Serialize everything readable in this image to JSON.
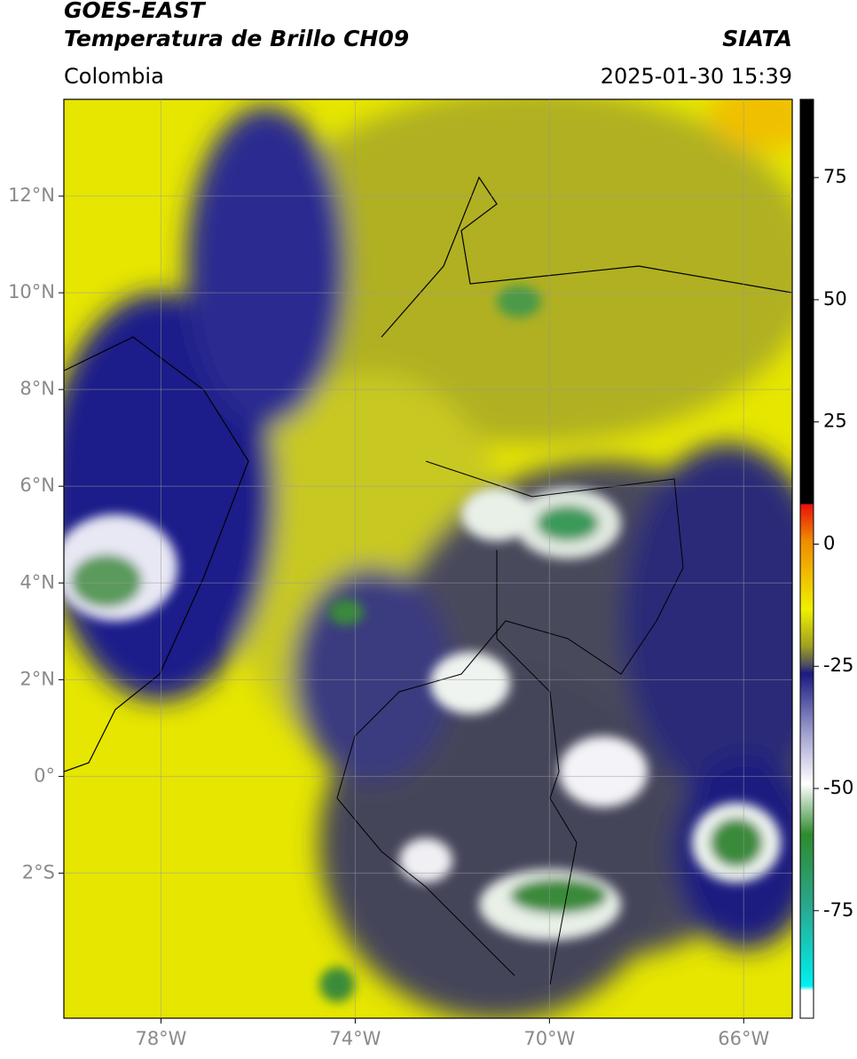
{
  "header": {
    "title": "GOES-EAST",
    "subtitle": "Temperatura de Brillo CH09",
    "source": "SIATA",
    "region": "Colombia",
    "datetime": "2025-01-30 15:39"
  },
  "map": {
    "xlim": [
      -80,
      -65
    ],
    "ylim": [
      -5,
      14
    ],
    "xticks": [
      {
        "value": -78,
        "label": "78°W"
      },
      {
        "value": -74,
        "label": "74°W"
      },
      {
        "value": -70,
        "label": "70°W"
      },
      {
        "value": -66,
        "label": "66°W"
      }
    ],
    "yticks": [
      {
        "value": 12,
        "label": "12°N"
      },
      {
        "value": 10,
        "label": "10°N"
      },
      {
        "value": 8,
        "label": "8°N"
      },
      {
        "value": 6,
        "label": "6°N"
      },
      {
        "value": 4,
        "label": "4°N"
      },
      {
        "value": 2,
        "label": "2°N"
      },
      {
        "value": 0,
        "label": "0°"
      },
      {
        "value": -2,
        "label": "2°S"
      }
    ],
    "grid": true
  },
  "colorbar": {
    "lim": [
      -97,
      91
    ],
    "ticks": [
      75,
      50,
      25,
      0,
      -25,
      -50,
      -75
    ]
  }
}
